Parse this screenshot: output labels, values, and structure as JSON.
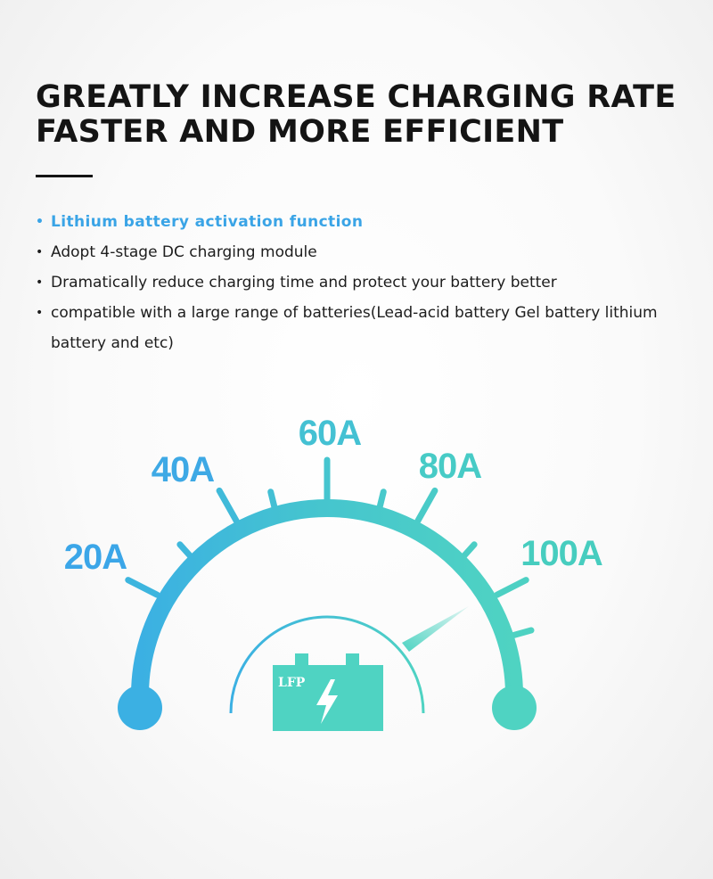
{
  "headline": {
    "line1": "GREATLY INCREASE CHARGING RATE",
    "line2": "FASTER AND MORE EFFICIENT"
  },
  "features": [
    {
      "bullet": "•",
      "text": "Lithium battery activation function"
    },
    {
      "bullet": "•",
      "text": "Adopt 4-stage DC charging module"
    },
    {
      "bullet": "•",
      "text": "Dramatically reduce charging time and protect your battery better"
    },
    {
      "bullet": "•",
      "text": "compatible with a large range of batteries(Lead-acid battery Gel battery lithium battery and etc)"
    }
  ],
  "gauge": {
    "labels": [
      "20A",
      "40A",
      "60A",
      "80A",
      "100A"
    ],
    "battery_label": "LFP",
    "colors": {
      "start": "#3bb0e3",
      "end": "#4fd3c2",
      "label_blue": "#3ba6e8",
      "label_teal": "#47cdbf"
    }
  }
}
